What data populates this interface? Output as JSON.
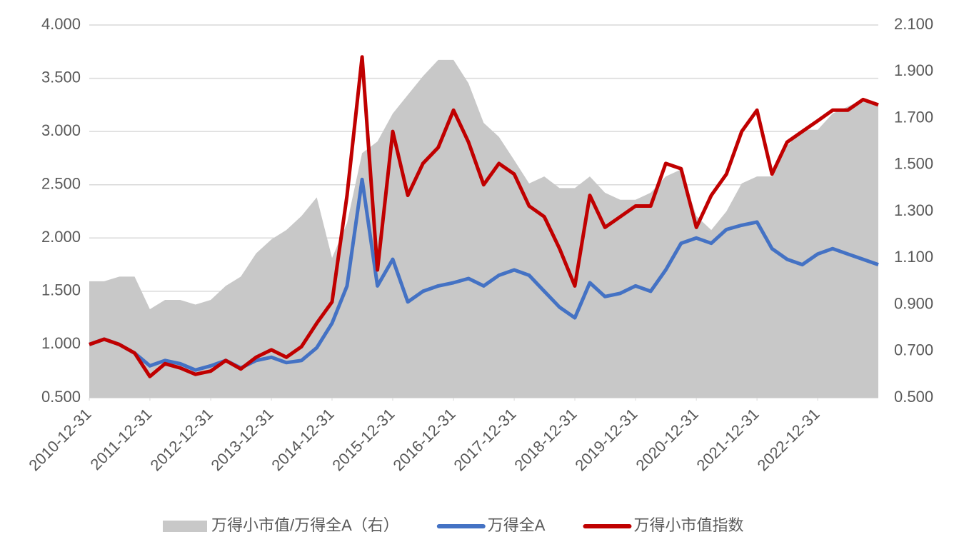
{
  "chart_data": {
    "type": "line",
    "x": [
      "2010-12-31",
      "2011-03-31",
      "2011-06-30",
      "2011-09-30",
      "2011-12-31",
      "2012-03-31",
      "2012-06-30",
      "2012-09-30",
      "2012-12-31",
      "2013-03-31",
      "2013-06-30",
      "2013-09-30",
      "2013-12-31",
      "2014-03-31",
      "2014-06-30",
      "2014-09-30",
      "2014-12-31",
      "2015-03-31",
      "2015-06-30",
      "2015-09-30",
      "2015-12-31",
      "2016-03-31",
      "2016-06-30",
      "2016-09-30",
      "2016-12-31",
      "2017-03-31",
      "2017-06-30",
      "2017-09-30",
      "2017-12-31",
      "2018-03-31",
      "2018-06-30",
      "2018-09-30",
      "2018-12-31",
      "2019-03-31",
      "2019-06-30",
      "2019-09-30",
      "2019-12-31",
      "2020-03-31",
      "2020-06-30",
      "2020-09-30",
      "2020-12-31",
      "2021-03-31",
      "2021-06-30",
      "2021-09-30",
      "2021-12-31",
      "2022-03-31",
      "2022-06-30",
      "2022-09-30",
      "2022-12-31",
      "2023-03-31",
      "2023-06-30",
      "2023-09-30",
      "2023-12-31"
    ],
    "series": [
      {
        "name": "万得小市值/万得全A（右）",
        "color": "#c8c8c8",
        "style": "area",
        "axis": "y2",
        "values": [
          1.0,
          1.0,
          1.02,
          1.02,
          0.88,
          0.92,
          0.92,
          0.9,
          0.92,
          0.98,
          1.02,
          1.12,
          1.18,
          1.22,
          1.28,
          1.36,
          1.1,
          1.25,
          1.55,
          1.6,
          1.72,
          1.8,
          1.88,
          1.95,
          1.95,
          1.85,
          1.68,
          1.62,
          1.52,
          1.42,
          1.45,
          1.4,
          1.4,
          1.45,
          1.38,
          1.35,
          1.35,
          1.38,
          1.45,
          1.48,
          1.28,
          1.22,
          1.3,
          1.42,
          1.45,
          1.45,
          1.58,
          1.65,
          1.65,
          1.72,
          1.75,
          1.78,
          1.75
        ]
      },
      {
        "name": "万得全A",
        "color": "#4472c4",
        "style": "line",
        "values": [
          1.0,
          1.05,
          1.0,
          0.92,
          0.8,
          0.85,
          0.82,
          0.76,
          0.8,
          0.85,
          0.78,
          0.85,
          0.88,
          0.83,
          0.85,
          0.97,
          1.2,
          1.55,
          2.55,
          1.55,
          1.8,
          1.4,
          1.5,
          1.55,
          1.58,
          1.62,
          1.55,
          1.65,
          1.7,
          1.65,
          1.5,
          1.35,
          1.25,
          1.58,
          1.45,
          1.48,
          1.55,
          1.5,
          1.7,
          1.95,
          2.0,
          1.95,
          2.08,
          2.12,
          2.15,
          1.9,
          1.8,
          1.75,
          1.85,
          1.9,
          1.85,
          1.8,
          1.75
        ]
      },
      {
        "name": "万得小市值指数",
        "color": "#c00000",
        "style": "line",
        "values": [
          1.0,
          1.05,
          1.0,
          0.92,
          0.7,
          0.82,
          0.78,
          0.72,
          0.75,
          0.85,
          0.77,
          0.88,
          0.95,
          0.88,
          0.98,
          1.2,
          1.4,
          2.4,
          3.7,
          1.7,
          3.0,
          2.4,
          2.7,
          2.85,
          3.2,
          2.9,
          2.5,
          2.7,
          2.6,
          2.3,
          2.2,
          1.9,
          1.55,
          2.4,
          2.1,
          2.2,
          2.3,
          2.3,
          2.7,
          2.65,
          2.1,
          2.4,
          2.6,
          3.0,
          3.2,
          2.6,
          2.9,
          3.0,
          3.1,
          3.2,
          3.2,
          3.3,
          3.25
        ]
      }
    ],
    "xlim": [
      "2010-12-31",
      "2023-12-31"
    ],
    "xticks": [
      "2010-12-31",
      "2011-12-31",
      "2012-12-31",
      "2013-12-31",
      "2014-12-31",
      "2015-12-31",
      "2016-12-31",
      "2017-12-31",
      "2018-12-31",
      "2019-12-31",
      "2020-12-31",
      "2021-12-31",
      "2022-12-31"
    ],
    "ylim": [
      0.5,
      4.0
    ],
    "yticks": [
      {
        "value": 0.5,
        "label": "0.500"
      },
      {
        "value": 1,
        "label": "1.000"
      },
      {
        "value": 1.5,
        "label": "1.500"
      },
      {
        "value": 2,
        "label": "2.000"
      },
      {
        "value": 2.5,
        "label": "2.500"
      },
      {
        "value": 3,
        "label": "3.000"
      },
      {
        "value": 3.5,
        "label": "3.500"
      },
      {
        "value": 4,
        "label": "4.000"
      }
    ],
    "y2lim": [
      0.5,
      2.1
    ],
    "y2ticks": [
      {
        "value": 0.5,
        "label": "0.500"
      },
      {
        "value": 0.7,
        "label": "0.700"
      },
      {
        "value": 0.9,
        "label": "0.900"
      },
      {
        "value": 1.1,
        "label": "1.100"
      },
      {
        "value": 1.3,
        "label": "1.300"
      },
      {
        "value": 1.5,
        "label": "1.500"
      },
      {
        "value": 1.7,
        "label": "1.700"
      },
      {
        "value": 1.9,
        "label": "1.900"
      },
      {
        "value": 2.1,
        "label": "2.100"
      }
    ],
    "grid": true,
    "legend": "bottom"
  }
}
